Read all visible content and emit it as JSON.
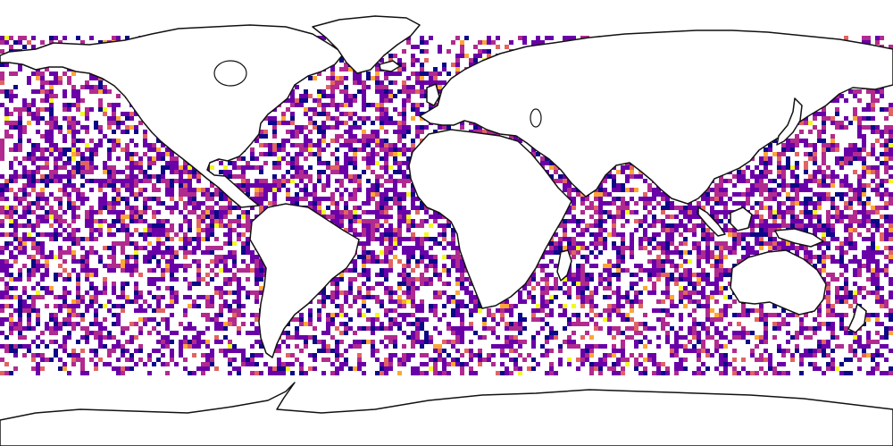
{
  "map": {
    "projection": "equirectangular",
    "colormap": [
      "#0d0887",
      "#6a00a8",
      "#b12a90",
      "#e16462",
      "#fca636",
      "#f0f921"
    ],
    "background": "#ffffff",
    "coastline_color": "#111111",
    "land_fill": "#ffffff",
    "gaps": "white (no data)"
  }
}
